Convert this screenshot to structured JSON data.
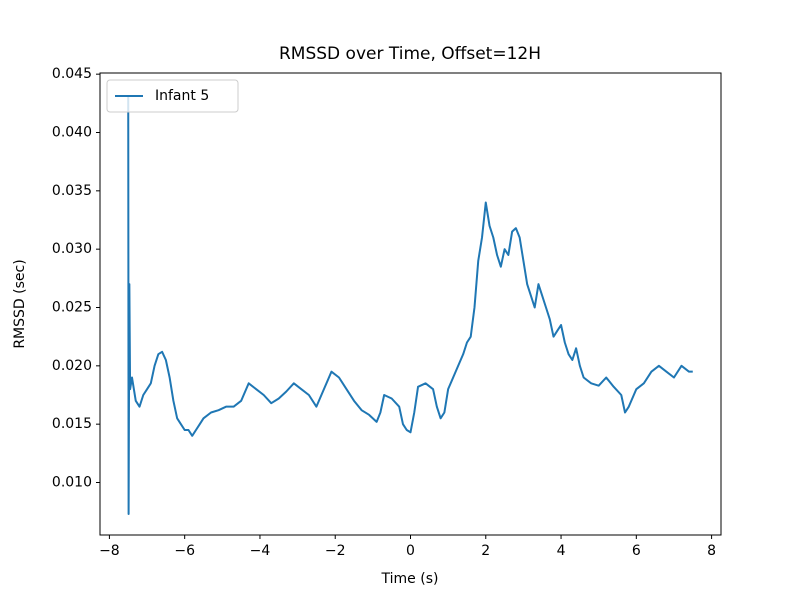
{
  "chart_data": {
    "type": "line",
    "title": "RMSSD over Time, Offset=12H",
    "xlabel": "Time (s)",
    "ylabel": "RMSSD (sec)",
    "xlim": [
      -8.25,
      8.25
    ],
    "xticks": [
      {
        "value": -8,
        "label": "−8"
      },
      {
        "value": -6,
        "label": "−6"
      },
      {
        "value": -4,
        "label": "−4"
      },
      {
        "value": -2,
        "label": "−2"
      },
      0,
      2,
      4,
      6,
      8
    ],
    "ylim": [
      0.0055,
      0.0451
    ],
    "yticks": [
      {
        "value": 0.01,
        "label": "0.010"
      },
      0.015,
      {
        "value": 0.02,
        "label": "0.020"
      },
      0.025,
      {
        "value": 0.03,
        "label": "0.030"
      },
      0.035,
      {
        "value": 0.04,
        "label": "0.040"
      },
      0.045
    ],
    "legend": "upper left",
    "grid": false,
    "series": [
      {
        "name": "Infant 5",
        "color": "#1f77b4",
        "x": [
          -7.5,
          -7.49,
          -7.47,
          -7.45,
          -7.4,
          -7.3,
          -7.2,
          -7.1,
          -7.0,
          -6.9,
          -6.8,
          -6.7,
          -6.6,
          -6.5,
          -6.4,
          -6.3,
          -6.2,
          -6.1,
          -6.0,
          -5.9,
          -5.8,
          -5.7,
          -5.6,
          -5.5,
          -5.3,
          -5.1,
          -4.9,
          -4.7,
          -4.5,
          -4.3,
          -4.1,
          -3.9,
          -3.7,
          -3.5,
          -3.3,
          -3.1,
          -2.9,
          -2.7,
          -2.5,
          -2.3,
          -2.1,
          -1.9,
          -1.7,
          -1.5,
          -1.3,
          -1.1,
          -0.9,
          -0.8,
          -0.7,
          -0.5,
          -0.3,
          -0.2,
          -0.1,
          0,
          0.1,
          0.2,
          0.4,
          0.6,
          0.7,
          0.8,
          0.9,
          1.0,
          1.2,
          1.4,
          1.5,
          1.6,
          1.7,
          1.8,
          1.9,
          2.0,
          2.1,
          2.2,
          2.3,
          2.4,
          2.5,
          2.6,
          2.7,
          2.8,
          2.9,
          3.0,
          3.1,
          3.2,
          3.3,
          3.4,
          3.5,
          3.6,
          3.7,
          3.8,
          3.9,
          4.0,
          4.1,
          4.2,
          4.3,
          4.4,
          4.5,
          4.6,
          4.8,
          5.0,
          5.2,
          5.4,
          5.6,
          5.7,
          5.8,
          6.0,
          6.2,
          6.4,
          6.6,
          6.8,
          7.0,
          7.2,
          7.4,
          7.5
        ],
        "values": [
          0.0432,
          0.0073,
          0.027,
          0.018,
          0.019,
          0.017,
          0.0165,
          0.0175,
          0.018,
          0.0185,
          0.02,
          0.021,
          0.0212,
          0.0205,
          0.019,
          0.017,
          0.0155,
          0.015,
          0.0145,
          0.0145,
          0.014,
          0.0145,
          0.015,
          0.0155,
          0.016,
          0.0162,
          0.0165,
          0.0165,
          0.017,
          0.0185,
          0.018,
          0.0175,
          0.0168,
          0.0172,
          0.0178,
          0.0185,
          0.018,
          0.0175,
          0.0165,
          0.018,
          0.0195,
          0.019,
          0.018,
          0.017,
          0.0162,
          0.0158,
          0.0152,
          0.016,
          0.0175,
          0.0172,
          0.0165,
          0.015,
          0.0145,
          0.0143,
          0.016,
          0.0182,
          0.0185,
          0.018,
          0.0165,
          0.0155,
          0.016,
          0.018,
          0.0195,
          0.021,
          0.022,
          0.0225,
          0.025,
          0.029,
          0.031,
          0.034,
          0.032,
          0.031,
          0.0295,
          0.0285,
          0.03,
          0.0295,
          0.0315,
          0.0318,
          0.031,
          0.029,
          0.027,
          0.026,
          0.025,
          0.027,
          0.026,
          0.025,
          0.024,
          0.0225,
          0.023,
          0.0235,
          0.022,
          0.021,
          0.0205,
          0.0215,
          0.02,
          0.019,
          0.0185,
          0.0183,
          0.019,
          0.0182,
          0.0175,
          0.016,
          0.0165,
          0.018,
          0.0185,
          0.0195,
          0.02,
          0.0195,
          0.019,
          0.02,
          0.0195,
          0.0195
        ]
      }
    ]
  }
}
